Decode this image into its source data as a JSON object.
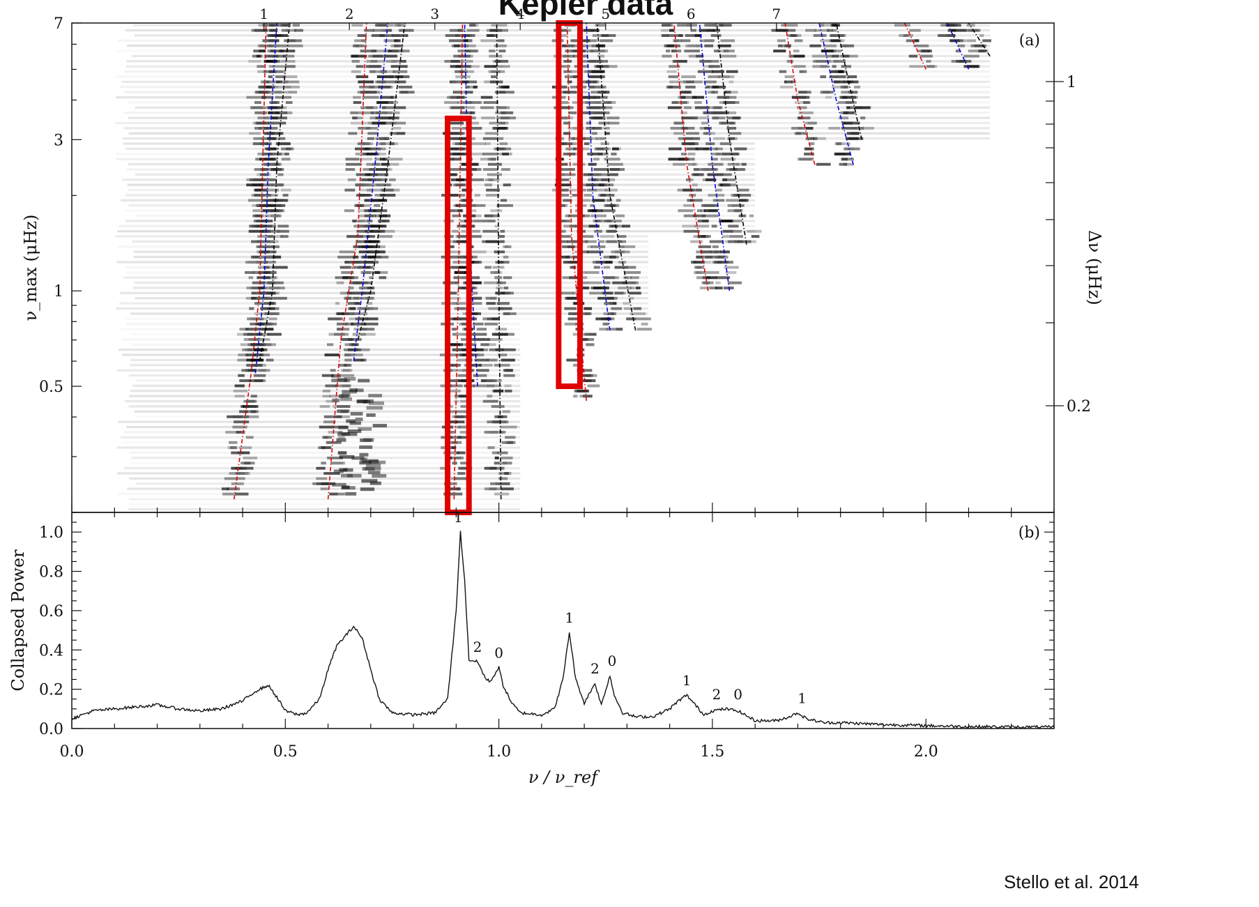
{
  "slide_title": "Kepler data",
  "credit": "Stello et al. 2014",
  "chart_data": [
    {
      "panel_label": "(a)",
      "type": "heatmap",
      "description_source": "echelle-style power map: nu/nu_ref (x) vs nu_max (y, log)",
      "xlim": [
        0.0,
        2.3
      ],
      "ylim": [
        0.2,
        7
      ],
      "y_scale": "log",
      "ylabel": "ν_max (μHz)",
      "y_ticks": [
        "0.5",
        "1",
        "3",
        "7"
      ],
      "y2label": "Δν (μHz)",
      "y2_ticks": [
        "0.2",
        "1"
      ],
      "top_ticks": [
        "1",
        "2",
        "3",
        "4",
        "5",
        "6",
        "7"
      ],
      "ridges": [
        {
          "color": "#e00000",
          "x": [
            0.38,
            0.42,
            0.44,
            0.455
          ],
          "y": [
            0.22,
            0.55,
            1.0,
            7.0
          ]
        },
        {
          "color": "#0000e0",
          "x": [
            0.43,
            0.45,
            0.46,
            0.48
          ],
          "y": [
            0.55,
            1.0,
            2.5,
            7.0
          ]
        },
        {
          "color": "#000000",
          "x": [
            0.44,
            0.47,
            0.48,
            0.51
          ],
          "y": [
            0.6,
            1.0,
            2.5,
            7.0
          ]
        },
        {
          "color": "#e00000",
          "x": [
            0.6,
            0.63,
            0.67,
            0.69
          ],
          "y": [
            0.22,
            0.7,
            1.5,
            7.0
          ]
        },
        {
          "color": "#0000e0",
          "x": [
            0.66,
            0.68,
            0.71,
            0.74
          ],
          "y": [
            0.6,
            1.0,
            2.5,
            7.0
          ]
        },
        {
          "color": "#000000",
          "x": [
            0.67,
            0.7,
            0.74,
            0.78
          ],
          "y": [
            0.7,
            1.0,
            2.5,
            7.0
          ]
        },
        {
          "color": "#e00000",
          "x": [
            0.895,
            0.905,
            0.915
          ],
          "y": [
            0.22,
            1.0,
            7.0
          ]
        },
        {
          "color": "#0000e0",
          "x": [
            0.95,
            0.93,
            0.92
          ],
          "y": [
            0.5,
            1.5,
            7.0
          ]
        },
        {
          "color": "#000000",
          "x": [
            1.005,
            1.0,
            0.995
          ],
          "y": [
            0.22,
            1.0,
            7.0
          ]
        },
        {
          "color": "#e00000",
          "x": [
            1.205,
            1.17,
            1.16
          ],
          "y": [
            0.45,
            1.5,
            7.0
          ]
        },
        {
          "color": "#0000e0",
          "x": [
            1.26,
            1.22,
            1.205
          ],
          "y": [
            0.75,
            2.0,
            7.0
          ]
        },
        {
          "color": "#000000",
          "x": [
            1.32,
            1.26,
            1.23
          ],
          "y": [
            0.75,
            2.0,
            7.0
          ]
        },
        {
          "color": "#e00000",
          "x": [
            1.49,
            1.44,
            1.41
          ],
          "y": [
            1.0,
            2.5,
            7.0
          ]
        },
        {
          "color": "#0000e0",
          "x": [
            1.54,
            1.5,
            1.47
          ],
          "y": [
            1.0,
            2.5,
            7.0
          ]
        },
        {
          "color": "#000000",
          "x": [
            1.58,
            1.54,
            1.51
          ],
          "y": [
            1.4,
            3.0,
            7.0
          ]
        },
        {
          "color": "#e00000",
          "x": [
            1.74,
            1.7,
            1.67
          ],
          "y": [
            2.5,
            4.0,
            7.0
          ]
        },
        {
          "color": "#0000e0",
          "x": [
            1.83,
            1.79,
            1.75
          ],
          "y": [
            2.5,
            4.0,
            7.0
          ]
        },
        {
          "color": "#000000",
          "x": [
            1.85,
            1.82,
            1.79
          ],
          "y": [
            3.0,
            4.5,
            7.0
          ]
        },
        {
          "color": "#e00000",
          "x": [
            2.0,
            1.95
          ],
          "y": [
            5.0,
            7.0
          ]
        },
        {
          "color": "#0000e0",
          "x": [
            2.1,
            2.05
          ],
          "y": [
            5.0,
            7.0
          ]
        },
        {
          "color": "#000000",
          "x": [
            2.15,
            2.1
          ],
          "y": [
            5.5,
            7.0
          ]
        }
      ],
      "highlight_boxes": [
        {
          "x": [
            0.88,
            0.93
          ],
          "y": [
            0.2,
            3.5
          ],
          "color": "#e00000"
        },
        {
          "x": [
            1.14,
            1.19
          ],
          "y": [
            0.5,
            7.0
          ],
          "color": "#e00000"
        }
      ]
    },
    {
      "panel_label": "(b)",
      "type": "line",
      "xlabel": "ν / ν_ref",
      "ylabel": "Collapsed Power",
      "xlim": [
        0.0,
        2.3
      ],
      "ylim": [
        0.0,
        1.1
      ],
      "x_ticks": [
        "0.0",
        "0.5",
        "1.0",
        "1.5",
        "2.0"
      ],
      "y_ticks": [
        "0.0",
        "0.2",
        "0.4",
        "0.6",
        "0.8",
        "1.0"
      ],
      "series": [
        {
          "x": [
            0.0,
            0.05,
            0.1,
            0.15,
            0.2,
            0.25,
            0.3,
            0.35,
            0.4,
            0.43,
            0.46,
            0.48,
            0.5,
            0.53,
            0.55,
            0.58,
            0.6,
            0.62,
            0.64,
            0.66,
            0.68,
            0.7,
            0.72,
            0.75,
            0.8,
            0.85,
            0.88,
            0.9,
            0.91,
            0.92,
            0.93,
            0.95,
            0.97,
            0.98,
            1.0,
            1.01,
            1.03,
            1.05,
            1.1,
            1.13,
            1.15,
            1.165,
            1.18,
            1.2,
            1.225,
            1.24,
            1.26,
            1.27,
            1.29,
            1.32,
            1.36,
            1.4,
            1.42,
            1.44,
            1.46,
            1.48,
            1.5,
            1.53,
            1.56,
            1.6,
            1.65,
            1.68,
            1.7,
            1.72,
            1.76,
            1.8,
            1.9,
            2.0,
            2.1,
            2.2,
            2.3
          ],
          "y": [
            0.05,
            0.09,
            0.1,
            0.11,
            0.12,
            0.1,
            0.09,
            0.1,
            0.14,
            0.19,
            0.22,
            0.16,
            0.09,
            0.07,
            0.08,
            0.15,
            0.3,
            0.42,
            0.47,
            0.52,
            0.46,
            0.3,
            0.15,
            0.08,
            0.07,
            0.08,
            0.15,
            0.6,
            1.0,
            0.75,
            0.35,
            0.34,
            0.25,
            0.24,
            0.31,
            0.22,
            0.13,
            0.08,
            0.07,
            0.1,
            0.25,
            0.49,
            0.25,
            0.13,
            0.23,
            0.12,
            0.27,
            0.17,
            0.08,
            0.06,
            0.06,
            0.1,
            0.14,
            0.17,
            0.12,
            0.07,
            0.09,
            0.1,
            0.09,
            0.04,
            0.04,
            0.06,
            0.08,
            0.05,
            0.03,
            0.03,
            0.02,
            0.015,
            0.01,
            0.008,
            0.007
          ]
        }
      ],
      "annotations": [
        {
          "text": "1",
          "x": 0.905,
          "y": 1.0
        },
        {
          "text": "2",
          "x": 0.95,
          "y": 0.34
        },
        {
          "text": "0",
          "x": 1.0,
          "y": 0.31
        },
        {
          "text": "1",
          "x": 1.165,
          "y": 0.49
        },
        {
          "text": "2",
          "x": 1.225,
          "y": 0.23
        },
        {
          "text": "0",
          "x": 1.265,
          "y": 0.27
        },
        {
          "text": "1",
          "x": 1.44,
          "y": 0.17
        },
        {
          "text": "2",
          "x": 1.51,
          "y": 0.1
        },
        {
          "text": "0",
          "x": 1.56,
          "y": 0.1
        },
        {
          "text": "1",
          "x": 1.71,
          "y": 0.08
        }
      ]
    }
  ]
}
